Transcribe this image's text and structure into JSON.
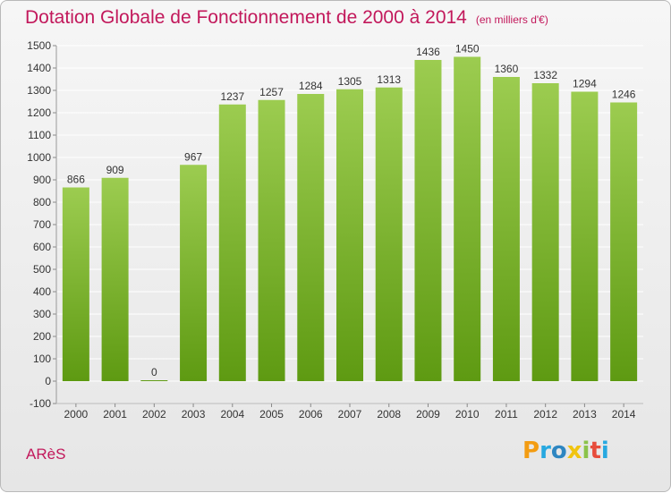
{
  "chart_data": {
    "type": "bar",
    "title": "Dotation Globale de Fonctionnement de 2000 à 2014",
    "subtitle": "(en milliers d'€)",
    "categories": [
      "2000",
      "2001",
      "2002",
      "2003",
      "2004",
      "2005",
      "2006",
      "2007",
      "2008",
      "2009",
      "2010",
      "2011",
      "2012",
      "2013",
      "2014"
    ],
    "values": [
      866,
      909,
      0,
      967,
      1237,
      1257,
      1284,
      1305,
      1313,
      1436,
      1450,
      1360,
      1332,
      1294,
      1246
    ],
    "ylim": [
      -100,
      1500
    ],
    "yticks": [
      -100,
      0,
      100,
      200,
      300,
      400,
      500,
      600,
      700,
      800,
      900,
      1000,
      1100,
      1200,
      1300,
      1400,
      1500
    ],
    "xlabel": "",
    "ylabel": "",
    "grid": true,
    "colors": {
      "bar_top": "#9ccc50",
      "bar_bottom": "#5e9a12",
      "grid": "#ffffff",
      "label": "#333333"
    }
  },
  "footer": {
    "city": "ARèS"
  },
  "logo": {
    "letters": [
      "P",
      "r",
      "o",
      "x",
      "i",
      "t",
      "i"
    ],
    "colors": [
      "#f39c12",
      "#27a8e0",
      "#2e86c1",
      "#f1c40f",
      "#8bc34a",
      "#e74c3c",
      "#27a8e0"
    ]
  }
}
